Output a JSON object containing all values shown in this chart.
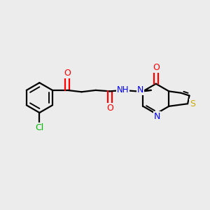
{
  "bg_color": "#ececec",
  "bond_color": "#000000",
  "bond_width": 1.6,
  "atom_colors": {
    "O": "#ff0000",
    "N": "#0000ff",
    "S": "#ccaa00",
    "Cl": "#00bb00",
    "H": "#008888"
  },
  "font_size": 8.5,
  "fig_width": 3.0,
  "fig_height": 3.0,
  "dpi": 100
}
